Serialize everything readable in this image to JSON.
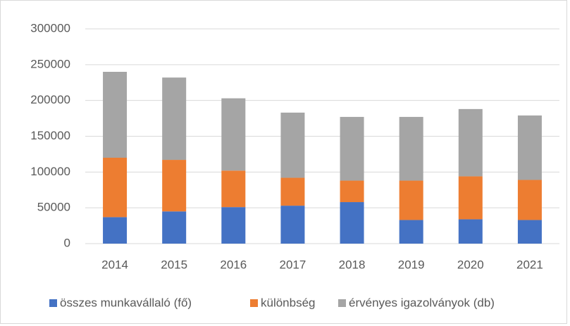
{
  "chart_data": {
    "type": "stacked_bar",
    "categories": [
      "2014",
      "2015",
      "2016",
      "2017",
      "2018",
      "2019",
      "2020",
      "2021"
    ],
    "series": [
      {
        "name": "összes munkavállaló (fő)",
        "color": "#4472c4",
        "values": [
          37000,
          45000,
          51000,
          53000,
          58000,
          33000,
          34000,
          33000
        ]
      },
      {
        "name": "különbség",
        "color": "#ed7d31",
        "values": [
          83000,
          72000,
          51000,
          39000,
          30000,
          55000,
          60000,
          56000
        ]
      },
      {
        "name": "érvényes igazolványok (db)",
        "color": "#a5a5a5",
        "values": [
          120000,
          115000,
          101000,
          91000,
          89000,
          89000,
          94000,
          90000
        ]
      }
    ],
    "ylim": [
      0,
      300000
    ],
    "yticks": [
      0,
      50000,
      100000,
      150000,
      200000,
      250000,
      300000
    ],
    "grid": true,
    "legend": "bottom"
  }
}
